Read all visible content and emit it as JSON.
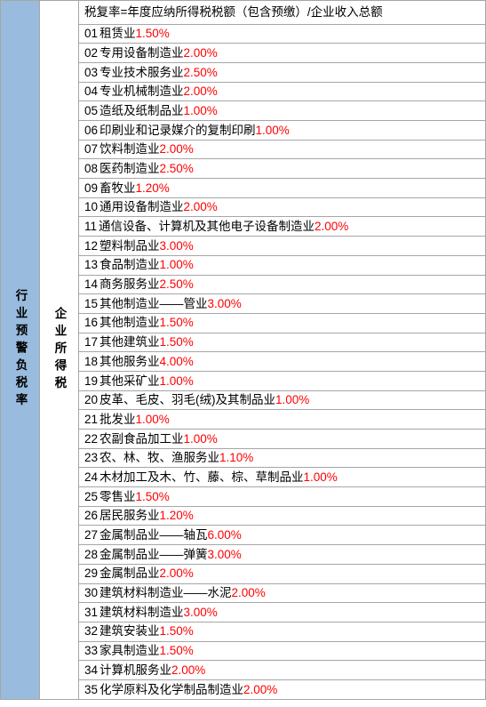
{
  "leftHeader": "行业预警负税率",
  "middleHeader": "企业所得税",
  "formula": "税复率=年度应纳所得税税额（包含预缴）/企业收入总额",
  "rows": [
    {
      "num": "01",
      "label": "租赁业 ",
      "rate": "1.50%"
    },
    {
      "num": "02",
      "label": "专用设备制造业 ",
      "rate": "2.00%"
    },
    {
      "num": "03",
      "label": "专业技术服务业 ",
      "rate": "2.50%"
    },
    {
      "num": "04",
      "label": "专业机械制造业 ",
      "rate": "2.00%"
    },
    {
      "num": "05",
      "label": "造纸及纸制品业 ",
      "rate": "1.00%"
    },
    {
      "num": "06",
      "label": "印刷业和记录媒介的复制印刷 ",
      "rate": "1.00%"
    },
    {
      "num": "07",
      "label": "饮料制造业 ",
      "rate": "2.00%"
    },
    {
      "num": "08",
      "label": "医药制造业 ",
      "rate": "2.50%"
    },
    {
      "num": "09",
      "label": "畜牧业 ",
      "rate": "1.20%"
    },
    {
      "num": "10",
      "label": "通用设备制造业 ",
      "rate": "2.00%"
    },
    {
      "num": "11",
      "label": "通信设备、计算机及其他电子设备制造业",
      "rate": "2.00%"
    },
    {
      "num": "12",
      "label": "塑料制品业 ",
      "rate": "3.00%"
    },
    {
      "num": "13",
      "label": "食品制造业 ",
      "rate": "1.00%"
    },
    {
      "num": "14",
      "label": "商务服务业 ",
      "rate": "2.50%"
    },
    {
      "num": "15",
      "label": "其他制造业——管业 ",
      "rate": "3.00%"
    },
    {
      "num": "16",
      "label": "其他制造业 ",
      "rate": "1.50%"
    },
    {
      "num": "17",
      "label": "其他建筑业 ",
      "rate": "1.50%"
    },
    {
      "num": "18",
      "label": "其他服务业 ",
      "rate": "4.00%"
    },
    {
      "num": "19",
      "label": "其他采矿业 ",
      "rate": "1.00%"
    },
    {
      "num": "20",
      "label": "皮革、毛皮、羽毛(绒)及其制品业",
      "rate": "1.00%"
    },
    {
      "num": "21",
      "label": "批发业 ",
      "rate": "1.00%"
    },
    {
      "num": "22",
      "label": "农副食品加工业 ",
      "rate": "1.00%"
    },
    {
      "num": "23",
      "label": "农、林、牧、渔服务业 ",
      "rate": "1.10%"
    },
    {
      "num": "24",
      "label": "木材加工及木、竹、藤、棕、草制品业 ",
      "rate": "1.00%"
    },
    {
      "num": "25",
      "label": "零售业 ",
      "rate": "1.50%"
    },
    {
      "num": "26",
      "label": "居民服务业 ",
      "rate": "1.20%"
    },
    {
      "num": "27",
      "label": "金属制品业——轴瓦 ",
      "rate": "6.00%"
    },
    {
      "num": "28",
      "label": "金属制品业——弹簧 ",
      "rate": "3.00%"
    },
    {
      "num": "29",
      "label": "金属制品业 ",
      "rate": "2.00%"
    },
    {
      "num": "30",
      "label": "建筑材料制造业——水泥 ",
      "rate": "2.00%"
    },
    {
      "num": "31",
      "label": "建筑材料制造业 ",
      "rate": "3.00%"
    },
    {
      "num": "32",
      "label": "建筑安装业 ",
      "rate": "1.50%"
    },
    {
      "num": "33",
      "label": "家具制造业 ",
      "rate": "1.50%"
    },
    {
      "num": "34",
      "label": "计算机服务业 ",
      "rate": "2.00%"
    },
    {
      "num": "35",
      "label": "化学原料及化学制品制造业 ",
      "rate": "2.00%"
    }
  ],
  "colors": {
    "leftBg": "#99bbdd",
    "border": "#a6a6a6",
    "text": "#000000",
    "rate": "#ff0000",
    "rowBg": "#ffffff"
  }
}
